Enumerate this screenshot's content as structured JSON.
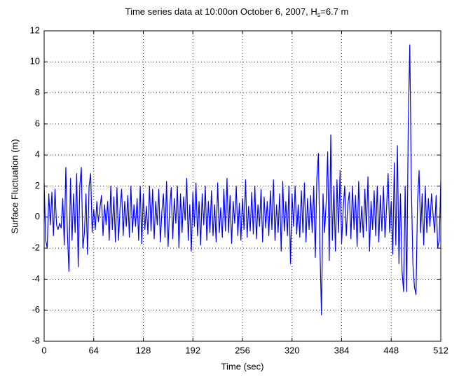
{
  "chart_data": {
    "type": "line",
    "title": "Time series data at 10:00on October 6, 2007, H",
    "title_subscript": "s",
    "title_end": "=6.7 m",
    "xlabel": "Time   (sec)",
    "ylabel": "Surface Fluctuation  (m)",
    "xlim": [
      0,
      512
    ],
    "ylim": [
      -8,
      12
    ],
    "xticks": [
      0,
      64,
      128,
      192,
      256,
      320,
      384,
      448,
      512
    ],
    "yticks": [
      -8,
      -6,
      -4,
      -2,
      0,
      2,
      4,
      6,
      8,
      10,
      12
    ],
    "grid": true,
    "x": [
      0,
      2,
      4,
      6,
      8,
      10,
      12,
      14,
      16,
      18,
      20,
      22,
      24,
      26,
      28,
      30,
      32,
      34,
      36,
      38,
      40,
      42,
      44,
      46,
      48,
      50,
      52,
      54,
      56,
      58,
      60,
      62,
      64,
      66,
      68,
      70,
      72,
      74,
      76,
      78,
      80,
      82,
      84,
      86,
      88,
      90,
      92,
      94,
      96,
      98,
      100,
      102,
      104,
      106,
      108,
      110,
      112,
      114,
      116,
      118,
      120,
      122,
      124,
      126,
      128,
      130,
      132,
      134,
      136,
      138,
      140,
      142,
      144,
      146,
      148,
      150,
      152,
      154,
      156,
      158,
      160,
      162,
      164,
      166,
      168,
      170,
      172,
      174,
      176,
      178,
      180,
      182,
      184,
      186,
      188,
      190,
      192,
      194,
      196,
      198,
      200,
      202,
      204,
      206,
      208,
      210,
      212,
      214,
      216,
      218,
      220,
      222,
      224,
      226,
      228,
      230,
      232,
      234,
      236,
      238,
      240,
      242,
      244,
      246,
      248,
      250,
      252,
      254,
      256,
      258,
      260,
      262,
      264,
      266,
      268,
      270,
      272,
      274,
      276,
      278,
      280,
      282,
      284,
      286,
      288,
      290,
      292,
      294,
      296,
      298,
      300,
      302,
      304,
      306,
      308,
      310,
      312,
      314,
      316,
      318,
      320,
      322,
      324,
      326,
      328,
      330,
      332,
      334,
      336,
      338,
      340,
      342,
      344,
      346,
      348,
      350,
      352,
      354,
      356,
      358,
      360,
      362,
      364,
      366,
      368,
      370,
      372,
      374,
      376,
      378,
      380,
      382,
      384,
      386,
      388,
      390,
      392,
      394,
      396,
      398,
      400,
      402,
      404,
      406,
      408,
      410,
      412,
      414,
      416,
      418,
      420,
      422,
      424,
      426,
      428,
      430,
      432,
      434,
      436,
      438,
      440,
      442,
      444,
      446,
      448,
      450,
      452,
      454,
      456,
      458,
      460,
      462,
      464,
      466,
      468,
      470,
      472,
      474,
      476,
      478,
      480,
      482,
      484,
      486,
      488,
      490,
      492,
      494,
      496,
      498,
      500,
      502,
      504,
      506,
      508,
      510,
      512
    ],
    "series": [
      {
        "color": "#0000ff",
        "values": [
          2.2,
          -1.5,
          -2.0,
          1.5,
          -0.5,
          1.6,
          -1.2,
          1.8,
          -0.5,
          -0.8,
          -0.4,
          -0.7,
          1.2,
          -1.8,
          3.2,
          -1.0,
          -3.5,
          2.5,
          -1.5,
          1.5,
          -1.0,
          2.8,
          -3.2,
          2.0,
          3.2,
          -2.0,
          -1.0,
          1.5,
          -2.4,
          2.0,
          2.8,
          -1.0,
          0.5,
          -0.8,
          1.0,
          -0.3,
          0.6,
          1.4,
          -1.2,
          0.8,
          -0.5,
          1.0,
          -1.5,
          2.0,
          -0.8,
          1.3,
          -1.6,
          1.9,
          -1.5,
          0.6,
          1.8,
          -1.2,
          1.0,
          -0.6,
          1.4,
          -1.3,
          2.0,
          -1.0,
          0.8,
          -0.6,
          1.2,
          -1.5,
          2.0,
          -1.7,
          1.5,
          -0.8,
          0.7,
          -1.1,
          2.0,
          -0.9,
          1.8,
          -1.4,
          1.0,
          -0.5,
          1.8,
          -1.6,
          0.4,
          1.5,
          -1.3,
          2.3,
          -1.9,
          0.6,
          1.9,
          -1.4,
          1.2,
          -0.4,
          2.0,
          -2.0,
          1.5,
          -1.0,
          1.3,
          -0.2,
          2.5,
          -1.5,
          0.8,
          -2.2,
          1.6,
          -0.6,
          2.2,
          -1.2,
          1.0,
          -1.8,
          1.5,
          -0.5,
          2.0,
          -1.5,
          1.0,
          -1.0,
          1.7,
          -1.2,
          0.8,
          -1.6,
          2.2,
          -1.0,
          0.6,
          -1.3,
          1.8,
          -0.9,
          2.5,
          -1.0,
          1.4,
          -1.7,
          1.0,
          -0.4,
          2.0,
          -1.2,
          0.9,
          -1.5,
          1.2,
          -0.8,
          2.4,
          -1.3,
          0.7,
          -0.9,
          1.6,
          -1.1,
          2.0,
          -1.4,
          0.8,
          -0.6,
          1.8,
          -1.6,
          1.3,
          -0.7,
          1.0,
          -1.2,
          1.7,
          -0.8,
          2.4,
          -1.5,
          0.8,
          -1.0,
          1.5,
          -2.2,
          2.3,
          -0.9,
          1.0,
          -1.2,
          2.0,
          -3.0,
          1.5,
          -0.6,
          2.0,
          -1.1,
          0.8,
          -1.3,
          1.7,
          -1.0,
          2.2,
          -1.6,
          1.2,
          -0.8,
          1.4,
          -1.0,
          2.0,
          -2.6,
          2.5,
          4.1,
          -2.0,
          -6.3,
          1.5,
          -1.0,
          0.9,
          4.2,
          -2.8,
          5.3,
          -1.5,
          2.0,
          -2.2,
          2.4,
          -1.0,
          3.0,
          -1.7,
          0.5,
          2.0,
          -1.2,
          0.8,
          1.6,
          -1.4,
          2.0,
          -0.8,
          1.4,
          -1.9,
          2.3,
          -1.0,
          0.7,
          -1.3,
          1.8,
          -0.9,
          2.6,
          -2.2,
          1.0,
          -0.8,
          1.7,
          -1.2,
          2.0,
          -1.6,
          1.4,
          -0.9,
          2.0,
          -1.3,
          0.6,
          2.8,
          -1.0,
          1.0,
          -2.4,
          3.5,
          -1.8,
          4.6,
          -3.0,
          1.5,
          -3.5,
          -4.8,
          2.0,
          -4.8,
          6.0,
          11.1,
          2.0,
          -3.0,
          -4.5,
          -5.0,
          1.0,
          3.0,
          -1.0,
          1.5,
          -1.8,
          2.0,
          -1.0,
          1.2,
          -0.6,
          1.5,
          0.2,
          -1.0,
          1.4,
          -2.0,
          -1.5,
          2.3
        ]
      }
    ]
  }
}
